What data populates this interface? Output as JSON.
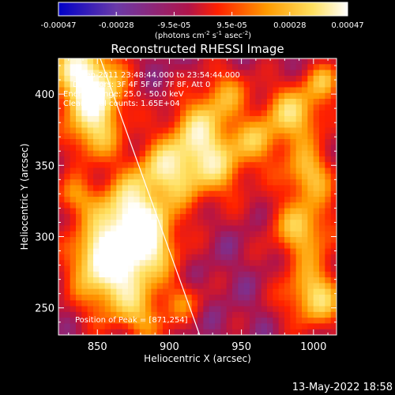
{
  "colorbar": {
    "tick_labels": [
      "-0.00047",
      "-0.00028",
      "-9.5e-05",
      "9.5e-05",
      "0.00028",
      "0.00047"
    ],
    "units_main": "(photons cm",
    "units_exp1": "-2",
    "units_mid": " s",
    "units_exp2": "-1",
    "units_mid2": " asec",
    "units_exp3": "-2",
    "units_end": ")",
    "colormap_stops": [
      "#0000c8",
      "#6a3aa8",
      "#b0144a",
      "#ff2000",
      "#ff9a00",
      "#ffe060",
      "#ffffff"
    ]
  },
  "chart_data": {
    "type": "heatmap",
    "title": "Reconstructed RHESSI Image",
    "xlabel": "Heliocentric X (arcsec)",
    "ylabel": "Heliocentric Y (arcsec)",
    "xlim": [
      823,
      1016
    ],
    "ylim": [
      231,
      425
    ],
    "x_ticks": [
      850,
      900,
      950,
      1000
    ],
    "y_ticks": [
      250,
      300,
      350,
      400
    ],
    "clim": [
      -0.00047,
      0.00047
    ],
    "limb_line": [
      [
        852,
        425
      ],
      [
        921,
        231
      ]
    ],
    "annotations": [
      "4-Sep-2011 23:48:44.000 to 23:54:44.000",
      "Detectors: 3F 4F 5F 6F 7F 8F, Att 0",
      "Energy Range: 25.0 - 50.0 keV",
      "Clean    Total counts: 1.65E+04"
    ],
    "peak_label": "Position of Peak = [871,254]",
    "peak_position": [
      871,
      254
    ]
  },
  "footer": {
    "timestamp": "13-May-2022 18:58"
  }
}
